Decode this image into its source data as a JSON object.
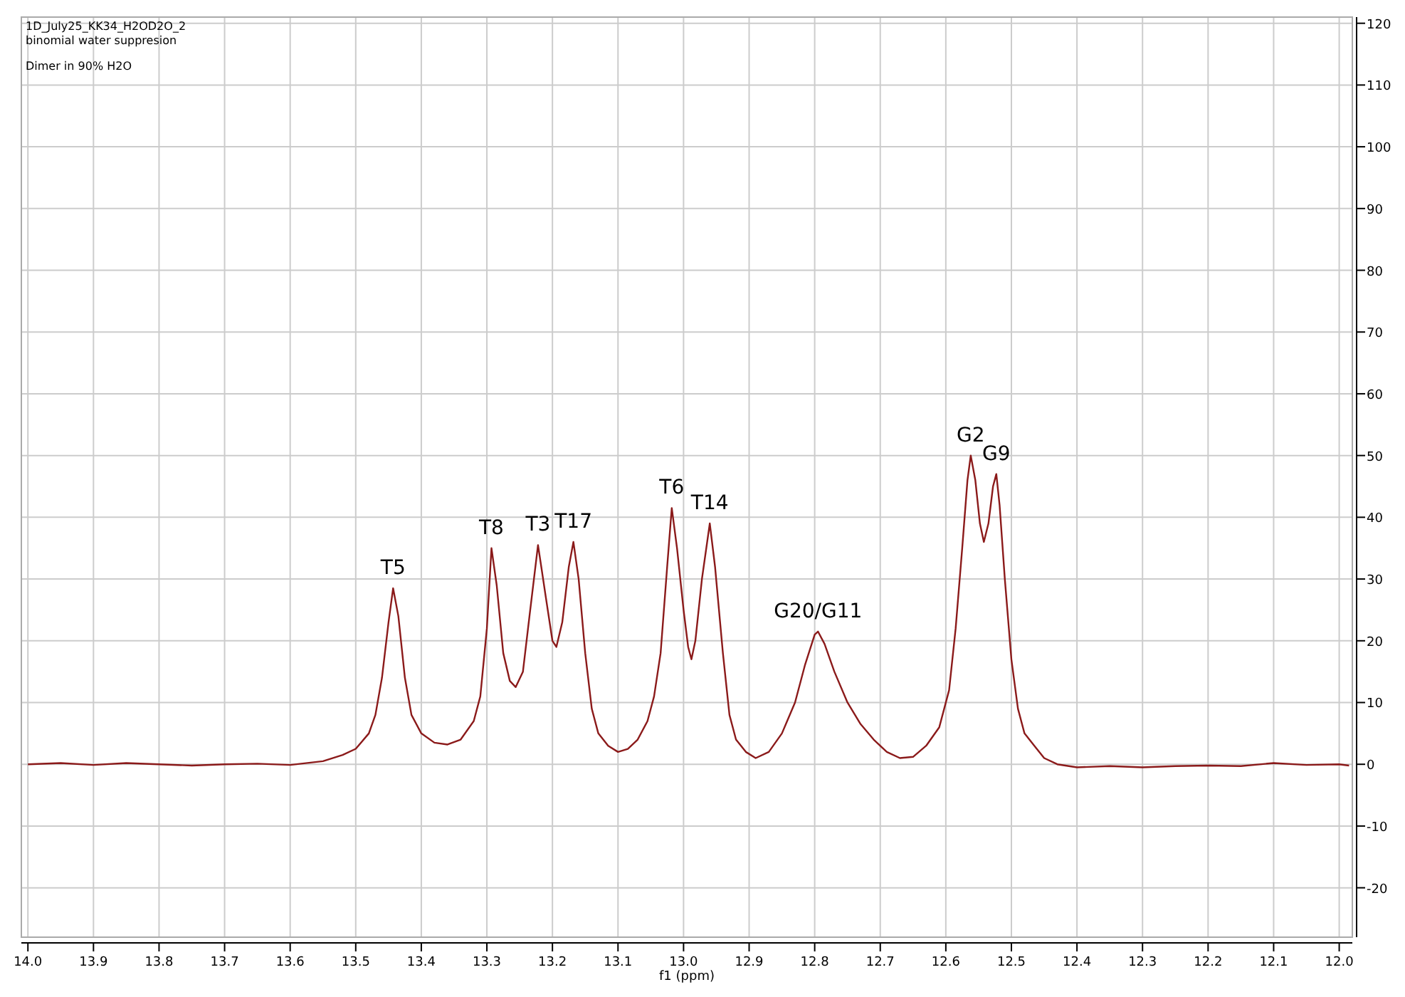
{
  "chart_data": {
    "type": "line",
    "xlabel": "f1 (ppm)",
    "annotations": [
      "1D_July25_KK34_H2OD2O_2",
      "binomial water suppresion",
      "Dimer in 90% H2O",
      {
        "text": "T5",
        "x": 13.443,
        "y": 28.5
      },
      {
        "text": "T8",
        "x": 13.293,
        "y": 35
      },
      {
        "text": "T3",
        "x": 13.222,
        "y": 35.5
      },
      {
        "text": "T17",
        "x": 13.168,
        "y": 36
      },
      {
        "text": "T6",
        "x": 13.018,
        "y": 41.5
      },
      {
        "text": "T14",
        "x": 12.96,
        "y": 39
      },
      {
        "text": "G20/G11",
        "x": 12.795,
        "y": 21.5
      },
      {
        "text": "G2",
        "x": 12.562,
        "y": 50
      },
      {
        "text": "G9",
        "x": 12.523,
        "y": 47
      }
    ],
    "series": [
      {
        "color": "#8b1a1a",
        "x": [
          14.0,
          13.95,
          13.9,
          13.85,
          13.8,
          13.75,
          13.7,
          13.65,
          13.6,
          13.55,
          13.52,
          13.5,
          13.48,
          13.47,
          13.46,
          13.45,
          13.443,
          13.435,
          13.425,
          13.415,
          13.4,
          13.38,
          13.36,
          13.34,
          13.32,
          13.31,
          13.3,
          13.293,
          13.285,
          13.275,
          13.265,
          13.256,
          13.245,
          13.235,
          13.222,
          13.21,
          13.2,
          13.194,
          13.185,
          13.175,
          13.168,
          13.16,
          13.15,
          13.14,
          13.13,
          13.115,
          13.1,
          13.085,
          13.07,
          13.055,
          13.045,
          13.035,
          13.025,
          13.018,
          13.01,
          13.0,
          12.993,
          12.988,
          12.982,
          12.972,
          12.96,
          12.952,
          12.94,
          12.93,
          12.92,
          12.905,
          12.89,
          12.87,
          12.85,
          12.83,
          12.815,
          12.8,
          12.795,
          12.785,
          12.77,
          12.75,
          12.73,
          12.71,
          12.69,
          12.67,
          12.65,
          12.63,
          12.61,
          12.595,
          12.585,
          12.575,
          12.567,
          12.562,
          12.555,
          12.548,
          12.542,
          12.535,
          12.528,
          12.523,
          12.518,
          12.51,
          12.5,
          12.49,
          12.48,
          12.465,
          12.45,
          12.43,
          12.4,
          12.35,
          12.3,
          12.25,
          12.2,
          12.15,
          12.1,
          12.05,
          12.0,
          11.985
        ],
        "values": [
          0,
          0.2,
          -0.1,
          0.2,
          0,
          -0.2,
          0,
          0.1,
          -0.1,
          0.5,
          1.5,
          2.5,
          5,
          8,
          14,
          23,
          28.5,
          24,
          14,
          8,
          5,
          3.5,
          3.2,
          4,
          7,
          11,
          22,
          35,
          29,
          18,
          13.5,
          12.5,
          15,
          24,
          35.5,
          27,
          20,
          19,
          23,
          32,
          36,
          30,
          18,
          9,
          5,
          3,
          2,
          2.5,
          4,
          7,
          11,
          18,
          32,
          41.5,
          35,
          25,
          19,
          17,
          20,
          30,
          39,
          32,
          18,
          8,
          4,
          2,
          1,
          2,
          5,
          10,
          16,
          21,
          21.5,
          19.5,
          15,
          10,
          6.5,
          4,
          2,
          1,
          1.2,
          3,
          6,
          12,
          22,
          35,
          46,
          50,
          46,
          39,
          36,
          39,
          45,
          47,
          42,
          30,
          17,
          9,
          5,
          3,
          1,
          0,
          -0.5,
          -0.3,
          -0.5,
          -0.3,
          -0.2,
          -0.3,
          0.2,
          -0.1,
          0,
          -0.2
        ]
      }
    ],
    "xlim": [
      14.01,
      11.98
    ],
    "xticks": [
      {
        "value": 14,
        "label": "14.0"
      },
      {
        "value": 13.9,
        "label": "13.9"
      },
      {
        "value": 13.8,
        "label": "13.8"
      },
      {
        "value": 13.7,
        "label": "13.7"
      },
      {
        "value": 13.6,
        "label": "13.6"
      },
      {
        "value": 13.5,
        "label": "13.5"
      },
      {
        "value": 13.4,
        "label": "13.4"
      },
      {
        "value": 13.3,
        "label": "13.3"
      },
      {
        "value": 13.2,
        "label": "13.2"
      },
      {
        "value": 13.1,
        "label": "13.1"
      },
      {
        "value": 13,
        "label": "13.0"
      },
      {
        "value": 12.9,
        "label": "12.9"
      },
      {
        "value": 12.8,
        "label": "12.8"
      },
      {
        "value": 12.7,
        "label": "12.7"
      },
      {
        "value": 12.6,
        "label": "12.6"
      },
      {
        "value": 12.5,
        "label": "12.5"
      },
      {
        "value": 12.4,
        "label": "12.4"
      },
      {
        "value": 12.3,
        "label": "12.3"
      },
      {
        "value": 12.2,
        "label": "12.2"
      },
      {
        "value": 12.1,
        "label": "12.1"
      },
      {
        "value": 12,
        "label": "12.0"
      }
    ],
    "ylim": [
      -28,
      121
    ],
    "yticks": [
      -20,
      -10,
      0,
      10,
      20,
      30,
      40,
      50,
      60,
      70,
      80,
      90,
      100,
      110,
      120
    ],
    "grid": true,
    "marker": "none",
    "line_style": "solid"
  }
}
